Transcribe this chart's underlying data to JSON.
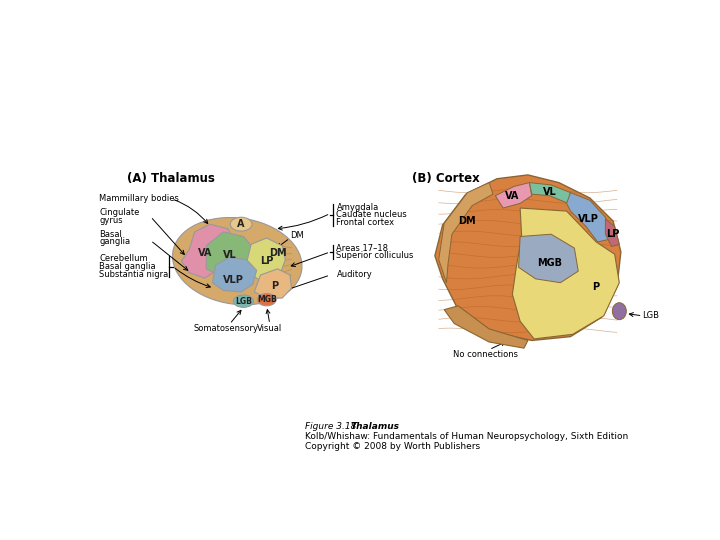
{
  "title_A": "(A) Thalamus",
  "title_B": "(B) Cortex",
  "caption_line1_regular": "Figure 3.18  ",
  "caption_line1_bold": "Thalamus",
  "caption_line2": "Kolb/Whishaw: Fundamentals of Human Neuropsychology, Sixth Edition",
  "caption_line3": "Copyright © 2008 by Worth Publishers",
  "bg_color": "#ffffff",
  "colors": {
    "tan_body": "#D4A96A",
    "pink_va": "#E090A8",
    "green_vl": "#88B878",
    "blue_vlp": "#8AAAC8",
    "yellow_lp": "#D8D878",
    "peach_p": "#E8B880",
    "teal_lgb": "#78B8B0",
    "orange_mgb": "#E07040",
    "tan_dm": "#C8A060",
    "cream_a": "#E8C888",
    "orange_brain": "#D88040",
    "yellow_cortex": "#E8D878",
    "pink_va_b": "#E898B0",
    "green_vl_b": "#78C0A0",
    "blue_vlp_b": "#88AAD0",
    "red_lp_b": "#C06878",
    "tan_dm_b": "#D4A060",
    "blue_mgb_b": "#9AAAC0",
    "purple_lgb_b": "#9070A0"
  }
}
